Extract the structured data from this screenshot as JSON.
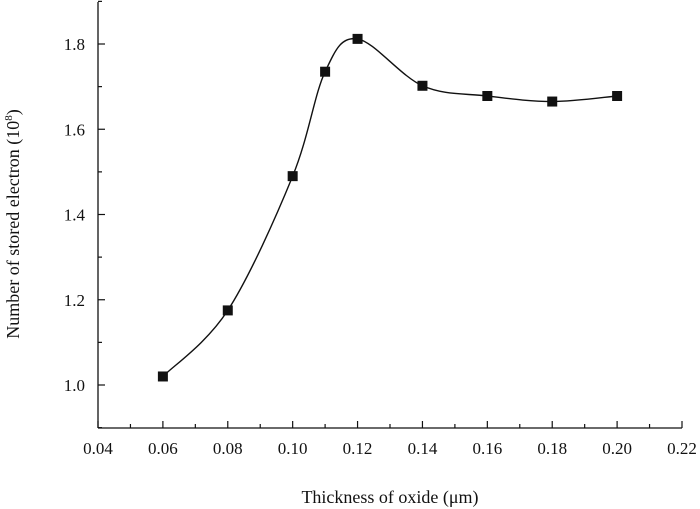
{
  "chart_data": {
    "type": "line",
    "title": "",
    "xlabel": "Thickness of oxide (μm)",
    "ylabel_main": "Number of stored electron (10",
    "ylabel_exp": "8",
    "ylabel_close": ")",
    "xlim": [
      0.04,
      0.22
    ],
    "ylim": [
      0.9,
      1.92
    ],
    "x_ticks": [
      0.04,
      0.06,
      0.08,
      0.1,
      0.12,
      0.14,
      0.16,
      0.18,
      0.2,
      0.22
    ],
    "x_tick_labels": [
      "0.04",
      "0.06",
      "0.08",
      "0.10",
      "0.12",
      "0.14",
      "0.16",
      "0.18",
      "0.20",
      "0.22"
    ],
    "y_ticks": [
      1.0,
      1.2,
      1.4,
      1.6,
      1.8
    ],
    "y_tick_labels": [
      "1.0",
      "1.2",
      "1.4",
      "1.6",
      "1.8"
    ],
    "grid": false,
    "legend": "none",
    "line_color": "#111111",
    "marker": "square",
    "series": [
      {
        "x": [
          0.06,
          0.08,
          0.1,
          0.11,
          0.12,
          0.14,
          0.16,
          0.18,
          0.2
        ],
        "y": [
          1.02,
          1.175,
          1.49,
          1.735,
          1.812,
          1.702,
          1.678,
          1.665,
          1.678
        ]
      }
    ]
  }
}
